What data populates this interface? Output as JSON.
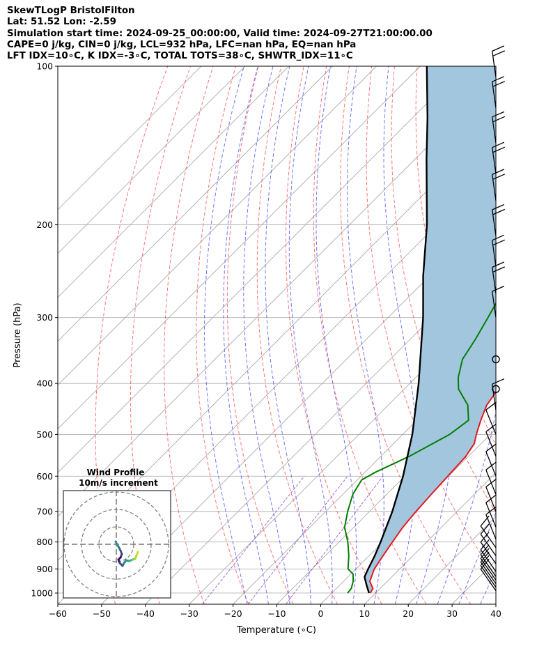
{
  "header": {
    "line1": "SkewTLogP BristolFilton",
    "line2": "Lat: 51.52   Lon: -2.59",
    "line3": "Simulation start time: 2024-09-25_00:00:00, Valid time: 2024-09-27T21:00:00.00",
    "line4": "CAPE=0 j/kg, CIN=0 j/kg, LCL=932 hPa, LFC=nan hPa, EQ=nan hPa",
    "line5": "LFT IDX=10∘C, K IDX=-3∘C, TOTAL TOTS=38∘C, SHWTR_IDX=11∘C"
  },
  "colors": {
    "temperature": "#e41a1c",
    "dewpoint": "#008000",
    "parcel": "#000000",
    "cape_fill": "#a3c6df",
    "dry_adiabat": "#ff5a5a",
    "moist_adiabat": "#5a5aff",
    "mixing_ratio": "#9b59c6",
    "isotherm": "#aaaaaa"
  },
  "chart_data": {
    "type": "line",
    "skew": true,
    "xlabel": "Temperature (∘C)",
    "ylabel": "Pressure (hPa)",
    "xlim": [
      -60,
      40
    ],
    "ylim": [
      1050,
      100
    ],
    "y_scale": "log",
    "x_ticks": [
      "−60",
      "−50",
      "−40",
      "−30",
      "−20",
      "−10",
      "0",
      "10",
      "20",
      "30",
      "40"
    ],
    "x_tick_values": [
      -60,
      -50,
      -40,
      -30,
      -20,
      -10,
      0,
      10,
      20,
      30,
      40
    ],
    "y_ticks": [
      "100",
      "200",
      "300",
      "400",
      "500",
      "600",
      "700",
      "800",
      "900",
      "1000"
    ],
    "y_tick_values": [
      100,
      200,
      300,
      400,
      500,
      600,
      700,
      800,
      900,
      1000
    ],
    "grid": true,
    "series": [
      {
        "key": "temperature",
        "points": [
          [
            1000,
            8.8
          ],
          [
            980,
            8.3
          ],
          [
            950,
            6.0
          ],
          [
            900,
            4.2
          ],
          [
            850,
            3.2
          ],
          [
            800,
            2.2
          ],
          [
            750,
            1.2
          ],
          [
            700,
            0.6
          ],
          [
            650,
            0.2
          ],
          [
            600,
            -0.2
          ],
          [
            550,
            -0.6
          ],
          [
            520,
            -1.6
          ],
          [
            500,
            -3.2
          ],
          [
            470,
            -5.4
          ],
          [
            440,
            -7.5
          ],
          [
            410,
            -8.6
          ],
          [
            380,
            -10.8
          ],
          [
            350,
            -13.1
          ],
          [
            320,
            -14.8
          ],
          [
            300,
            -16.2
          ],
          [
            285,
            -17.4
          ],
          [
            260,
            -16.6
          ],
          [
            240,
            -15.3
          ],
          [
            220,
            -14.1
          ],
          [
            200,
            -12.2
          ],
          [
            180,
            -10.4
          ],
          [
            160,
            -8.4
          ],
          [
            140,
            -7.0
          ],
          [
            125,
            -5.2
          ],
          [
            110,
            -3.4
          ],
          [
            100,
            -2.6
          ]
        ]
      },
      {
        "key": "dewpoint",
        "points": [
          [
            1000,
            3.6
          ],
          [
            980,
            3.4
          ],
          [
            950,
            2.2
          ],
          [
            920,
            0.5
          ],
          [
            900,
            -1.8
          ],
          [
            850,
            -4.6
          ],
          [
            800,
            -8.0
          ],
          [
            750,
            -12.1
          ],
          [
            700,
            -15.0
          ],
          [
            650,
            -17.7
          ],
          [
            610,
            -19.0
          ],
          [
            590,
            -17.6
          ],
          [
            550,
            -13.5
          ],
          [
            500,
            -9.3
          ],
          [
            470,
            -8.2
          ],
          [
            440,
            -11.8
          ],
          [
            410,
            -17.6
          ],
          [
            390,
            -20.3
          ],
          [
            360,
            -23.5
          ],
          [
            330,
            -25.1
          ],
          [
            300,
            -27.2
          ],
          [
            270,
            -29.6
          ],
          [
            250,
            -29.7
          ],
          [
            230,
            -33.1
          ],
          [
            210,
            -37.5
          ],
          [
            190,
            -40.6
          ],
          [
            170,
            -40.7
          ],
          [
            145,
            -39.9
          ],
          [
            120,
            -39.5
          ],
          [
            100,
            -38.2
          ]
        ]
      },
      {
        "key": "parcel",
        "points": [
          [
            1000,
            8.5
          ],
          [
            970,
            6.4
          ],
          [
            932,
            3.8
          ],
          [
            900,
            2.8
          ],
          [
            850,
            1.3
          ],
          [
            800,
            -0.5
          ],
          [
            700,
            -4.8
          ],
          [
            600,
            -10.4
          ],
          [
            500,
            -17.8
          ],
          [
            400,
            -28.0
          ],
          [
            300,
            -42.0
          ],
          [
            250,
            -51.5
          ],
          [
            200,
            -62.3
          ],
          [
            150,
            -77.4
          ],
          [
            125,
            -86.7
          ],
          [
            100,
            -98.5
          ]
        ]
      }
    ],
    "wind_barbs": {
      "color": "#000000",
      "pressures": [
        990,
        975,
        960,
        945,
        930,
        910,
        880,
        850,
        820,
        790,
        750,
        700,
        650,
        600,
        550,
        500,
        450,
        410,
        360,
        300,
        270,
        240,
        210,
        180,
        160,
        140,
        120,
        105
      ],
      "calm": [
        410,
        360
      ]
    },
    "hodograph": {
      "title": "Wind Profile",
      "subtitle": "10m/s increment"
    }
  }
}
